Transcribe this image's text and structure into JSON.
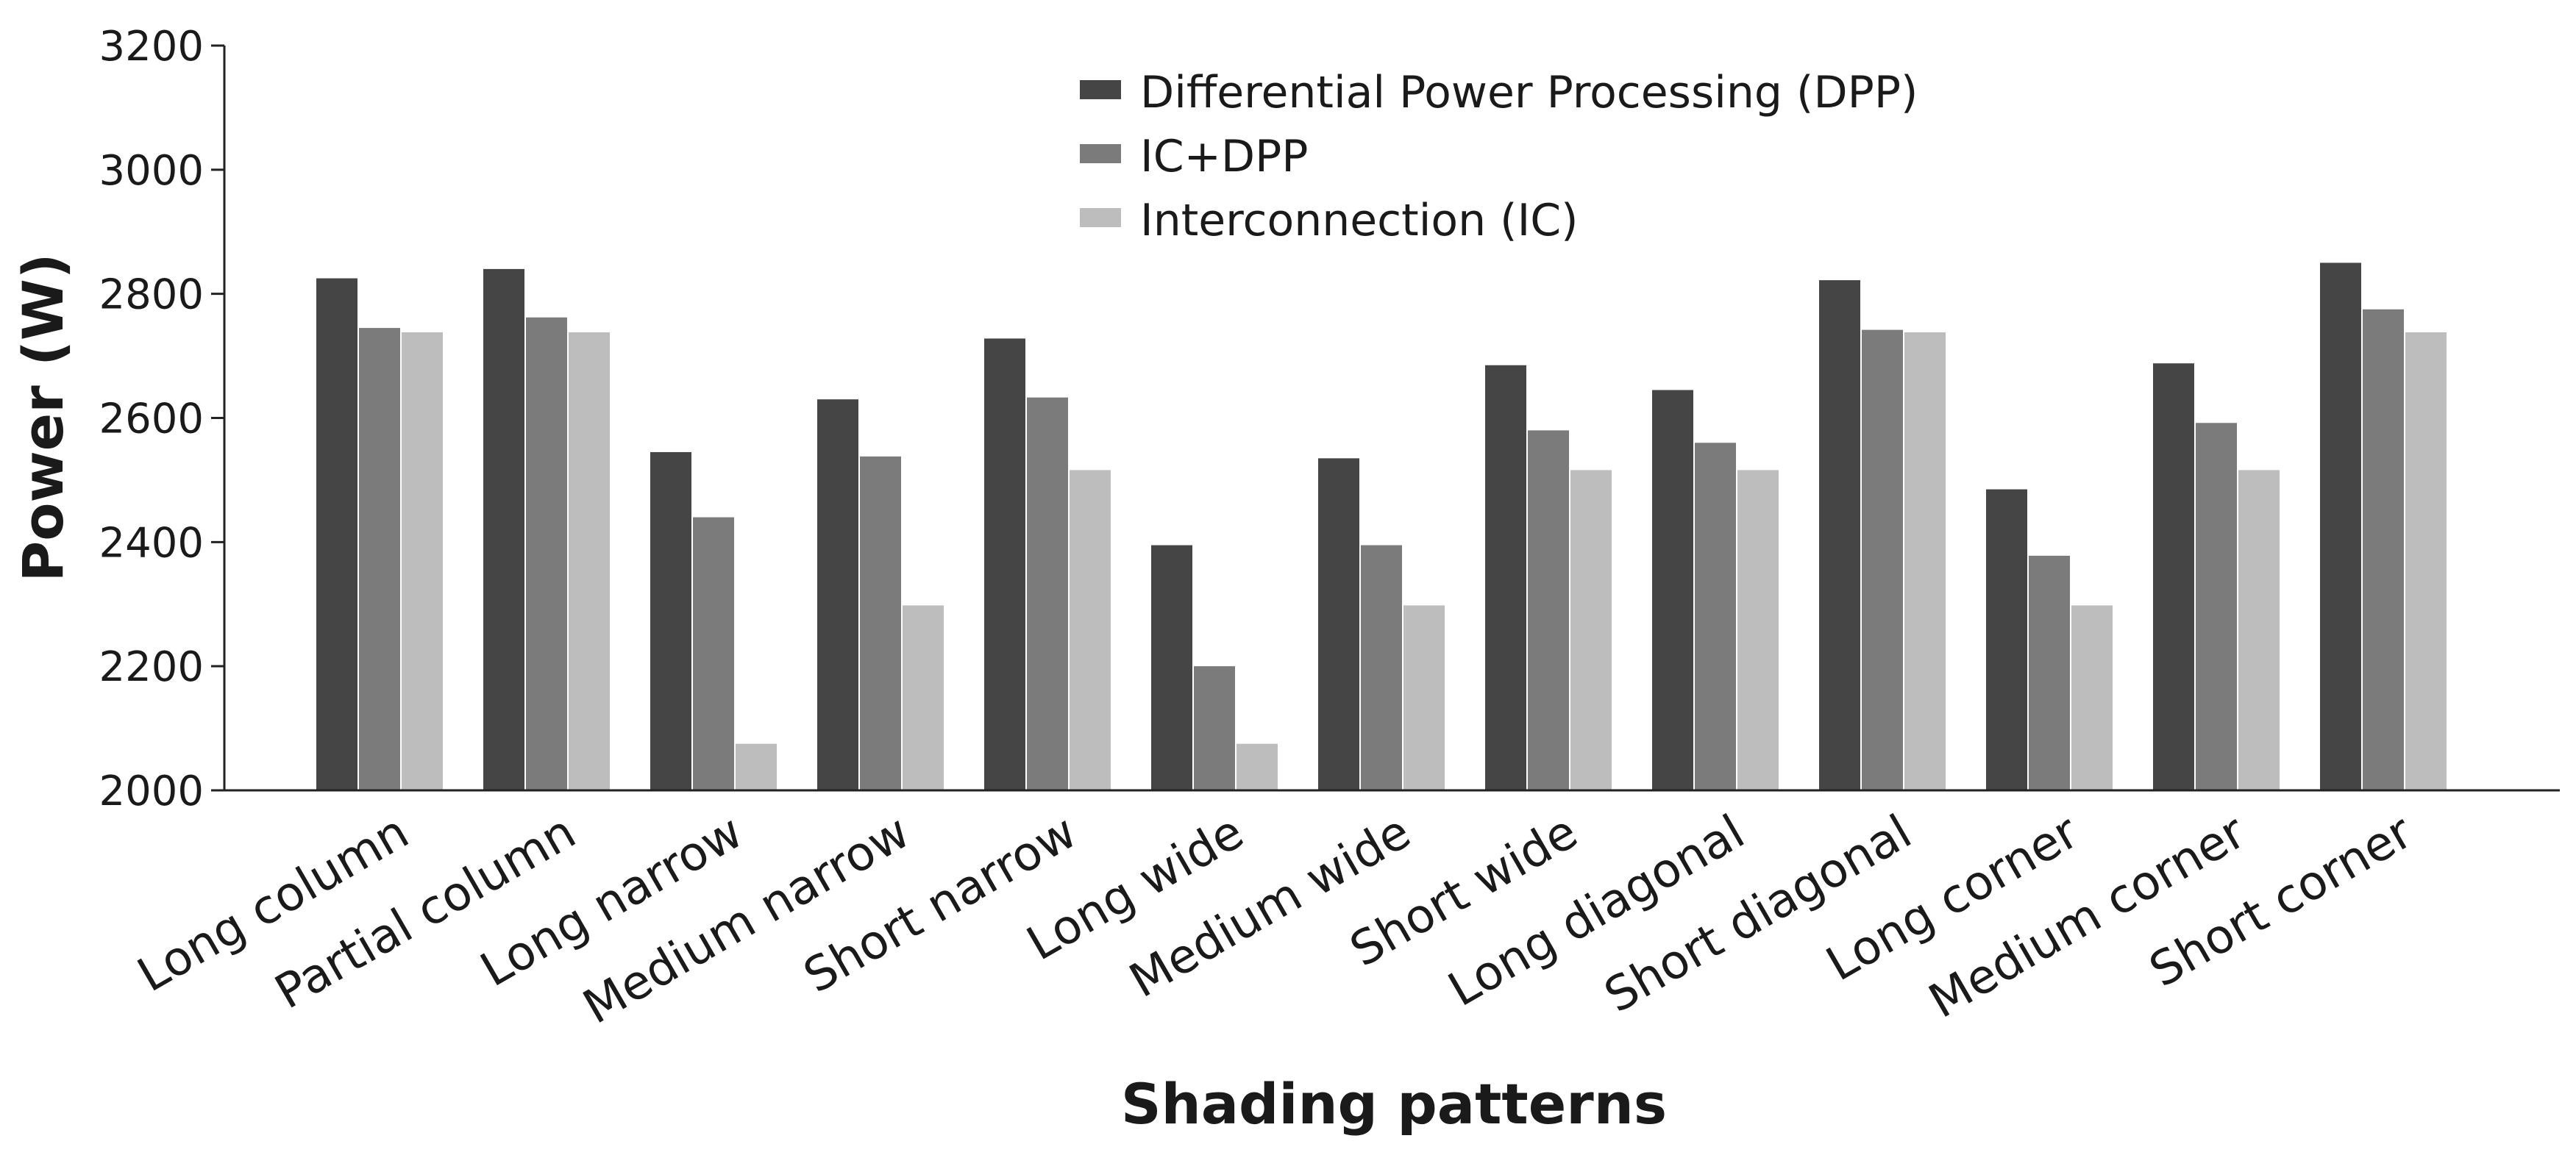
{
  "chart_data": {
    "type": "bar",
    "title": "",
    "xlabel": "Shading patterns",
    "ylabel": "Power (W)",
    "ylim": [
      2000,
      3200
    ],
    "yticks": [
      2000,
      2200,
      2400,
      2600,
      2800,
      3000,
      3200
    ],
    "grid": false,
    "legend_position": "top-center",
    "categories": [
      "Long column",
      "Partial column",
      "Long narrow",
      "Medium narrow",
      "Short narrow",
      "Long wide",
      "Medium wide",
      "Short wide",
      "Long diagonal",
      "Short diagonal",
      "Long corner",
      "Medium corner",
      "Short corner"
    ],
    "series": [
      {
        "name": "Differential Power Processing (DPP)",
        "color": "#454545",
        "values": [
          2825,
          2840,
          2545,
          2630,
          2728,
          2395,
          2535,
          2685,
          2645,
          2822,
          2485,
          2688,
          2850
        ]
      },
      {
        "name": "IC+DPP",
        "color": "#7b7b7b",
        "values": [
          2745,
          2762,
          2440,
          2538,
          2633,
          2200,
          2395,
          2580,
          2560,
          2742,
          2378,
          2592,
          2775
        ]
      },
      {
        "name": "Interconnection (IC)",
        "color": "#bdbdbd",
        "values": [
          2738,
          2738,
          2075,
          2298,
          2516,
          2075,
          2298,
          2516,
          2516,
          2738,
          2298,
          2516,
          2738
        ]
      }
    ]
  }
}
